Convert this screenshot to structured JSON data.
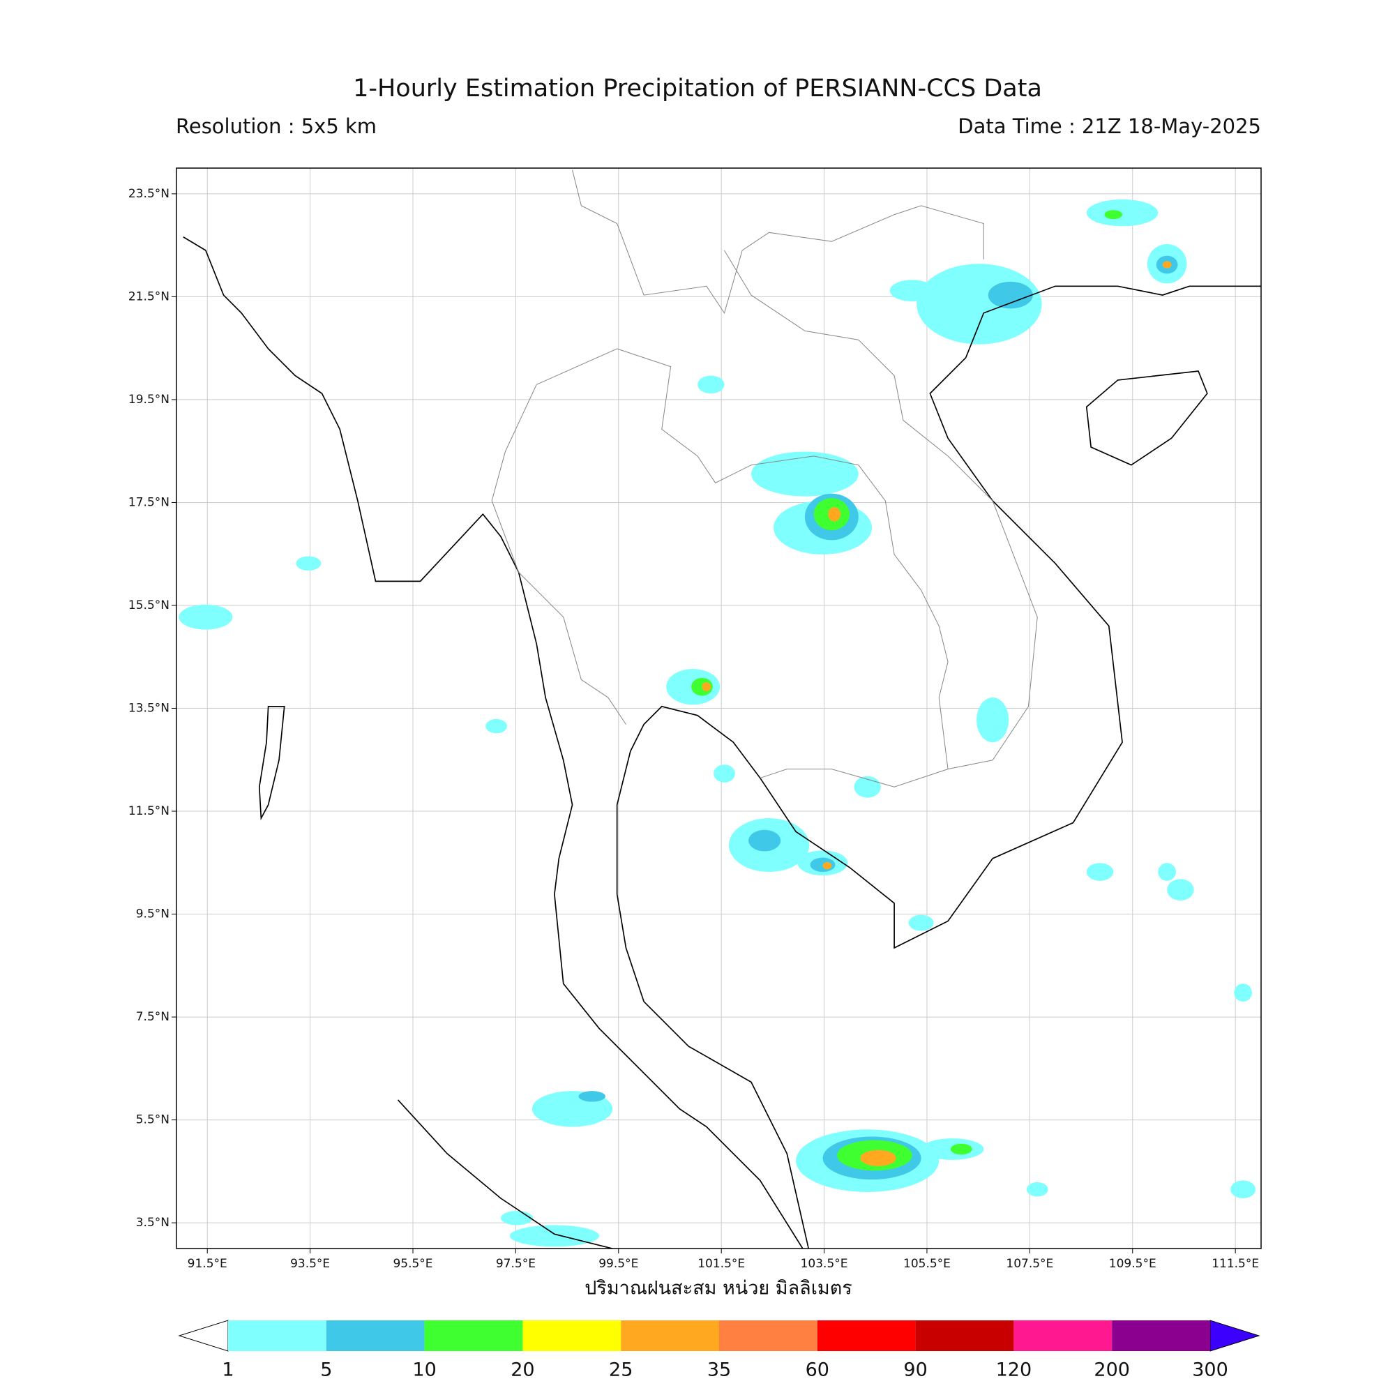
{
  "title": "1-Hourly Estimation Precipitation of PERSIANN-CCS Data",
  "resolution": "Resolution : 5x5 km",
  "data_time": "Data Time : 21Z 18-May-2025",
  "x_axis_label": "ปริมาณฝนสะสม หน่วย มิลลิเมตร",
  "map": {
    "xlim": [
      90.9,
      112.0
    ],
    "ylim": [
      3.0,
      24.0
    ],
    "grid": true,
    "xticks": [
      {
        "value": 91.5,
        "label": "91.5°E"
      },
      {
        "value": 93.5,
        "label": "93.5°E"
      },
      {
        "value": 95.5,
        "label": "95.5°E"
      },
      {
        "value": 97.5,
        "label": "97.5°E"
      },
      {
        "value": 99.5,
        "label": "99.5°E"
      },
      {
        "value": 101.5,
        "label": "101.5°E"
      },
      {
        "value": 103.5,
        "label": "103.5°E"
      },
      {
        "value": 105.5,
        "label": "105.5°E"
      },
      {
        "value": 107.5,
        "label": "107.5°E"
      },
      {
        "value": 109.5,
        "label": "109.5°E"
      },
      {
        "value": 111.5,
        "label": "111.5°E"
      }
    ],
    "yticks": [
      {
        "value": 3.5,
        "label": "3.5°N"
      },
      {
        "value": 5.5,
        "label": "5.5°N"
      },
      {
        "value": 7.5,
        "label": "7.5°N"
      },
      {
        "value": 9.5,
        "label": "9.5°N"
      },
      {
        "value": 11.5,
        "label": "11.5°N"
      },
      {
        "value": 13.5,
        "label": "13.5°N"
      },
      {
        "value": 15.5,
        "label": "15.5°N"
      },
      {
        "value": 17.5,
        "label": "17.5°N"
      },
      {
        "value": 19.5,
        "label": "19.5°N"
      },
      {
        "value": 21.5,
        "label": "21.5°N"
      },
      {
        "value": 23.5,
        "label": "23.5°N"
      }
    ]
  },
  "colorbar": {
    "levels": [
      1,
      5,
      10,
      20,
      25,
      35,
      60,
      90,
      120,
      200,
      300
    ],
    "colors": [
      "#80ffff",
      "#40c8e8",
      "#40ff30",
      "#ffff00",
      "#ffa820",
      "#ff8040",
      "#ff0000",
      "#c80000",
      "#ff1890",
      "#8c0090"
    ],
    "under_color": "#ffffff",
    "over_color": "#3c00ff"
  }
}
